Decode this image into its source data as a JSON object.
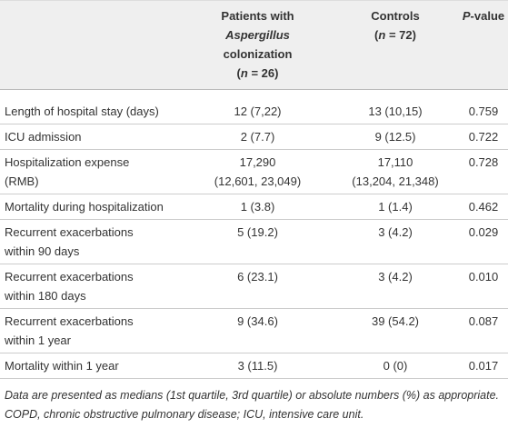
{
  "header": {
    "patients": [
      "Patients with",
      "Aspergillus",
      "colonization",
      "(",
      "n",
      " = 26)"
    ],
    "controls": [
      "Controls",
      "(",
      "n",
      " = 72)"
    ],
    "pvalue": [
      "P",
      "-value"
    ]
  },
  "rows": [
    [
      [
        "Length of hospital stay (days)"
      ],
      [
        "12 (7,22)"
      ],
      [
        "13 (10,15)"
      ],
      [
        "0.759"
      ]
    ],
    [
      [
        "ICU admission"
      ],
      [
        "2 (7.7)"
      ],
      [
        "9 (12.5)"
      ],
      [
        "0.722"
      ]
    ],
    [
      [
        "Hospitalization expense",
        "(RMB)"
      ],
      [
        "17,290",
        "(12,601, 23,049)"
      ],
      [
        "17,110",
        "(13,204, 21,348)"
      ],
      [
        "0.728"
      ]
    ],
    [
      [
        "Mortality during hospitalization"
      ],
      [
        "1 (3.8)"
      ],
      [
        "1 (1.4)"
      ],
      [
        "0.462"
      ]
    ],
    [
      [
        "Recurrent exacerbations",
        "within 90 days"
      ],
      [
        "5 (19.2)"
      ],
      [
        "3 (4.2)"
      ],
      [
        "0.029"
      ]
    ],
    [
      [
        "Recurrent exacerbations",
        "within 180 days"
      ],
      [
        "6 (23.1)"
      ],
      [
        "3 (4.2)"
      ],
      [
        "0.010"
      ]
    ],
    [
      [
        "Recurrent exacerbations",
        "within 1 year"
      ],
      [
        "9 (34.6)"
      ],
      [
        "39 (54.2)"
      ],
      [
        "0.087"
      ]
    ],
    [
      [
        "Mortality within 1 year"
      ],
      [
        "3 (11.5)"
      ],
      [
        "0 (0)"
      ],
      [
        "0.017"
      ]
    ]
  ],
  "footnote": "Data are presented as medians (1st quartile, 3rd quartile) or absolute numbers (%) as appropriate. COPD, chronic obstructive pulmonary disease; ICU, intensive care unit."
}
